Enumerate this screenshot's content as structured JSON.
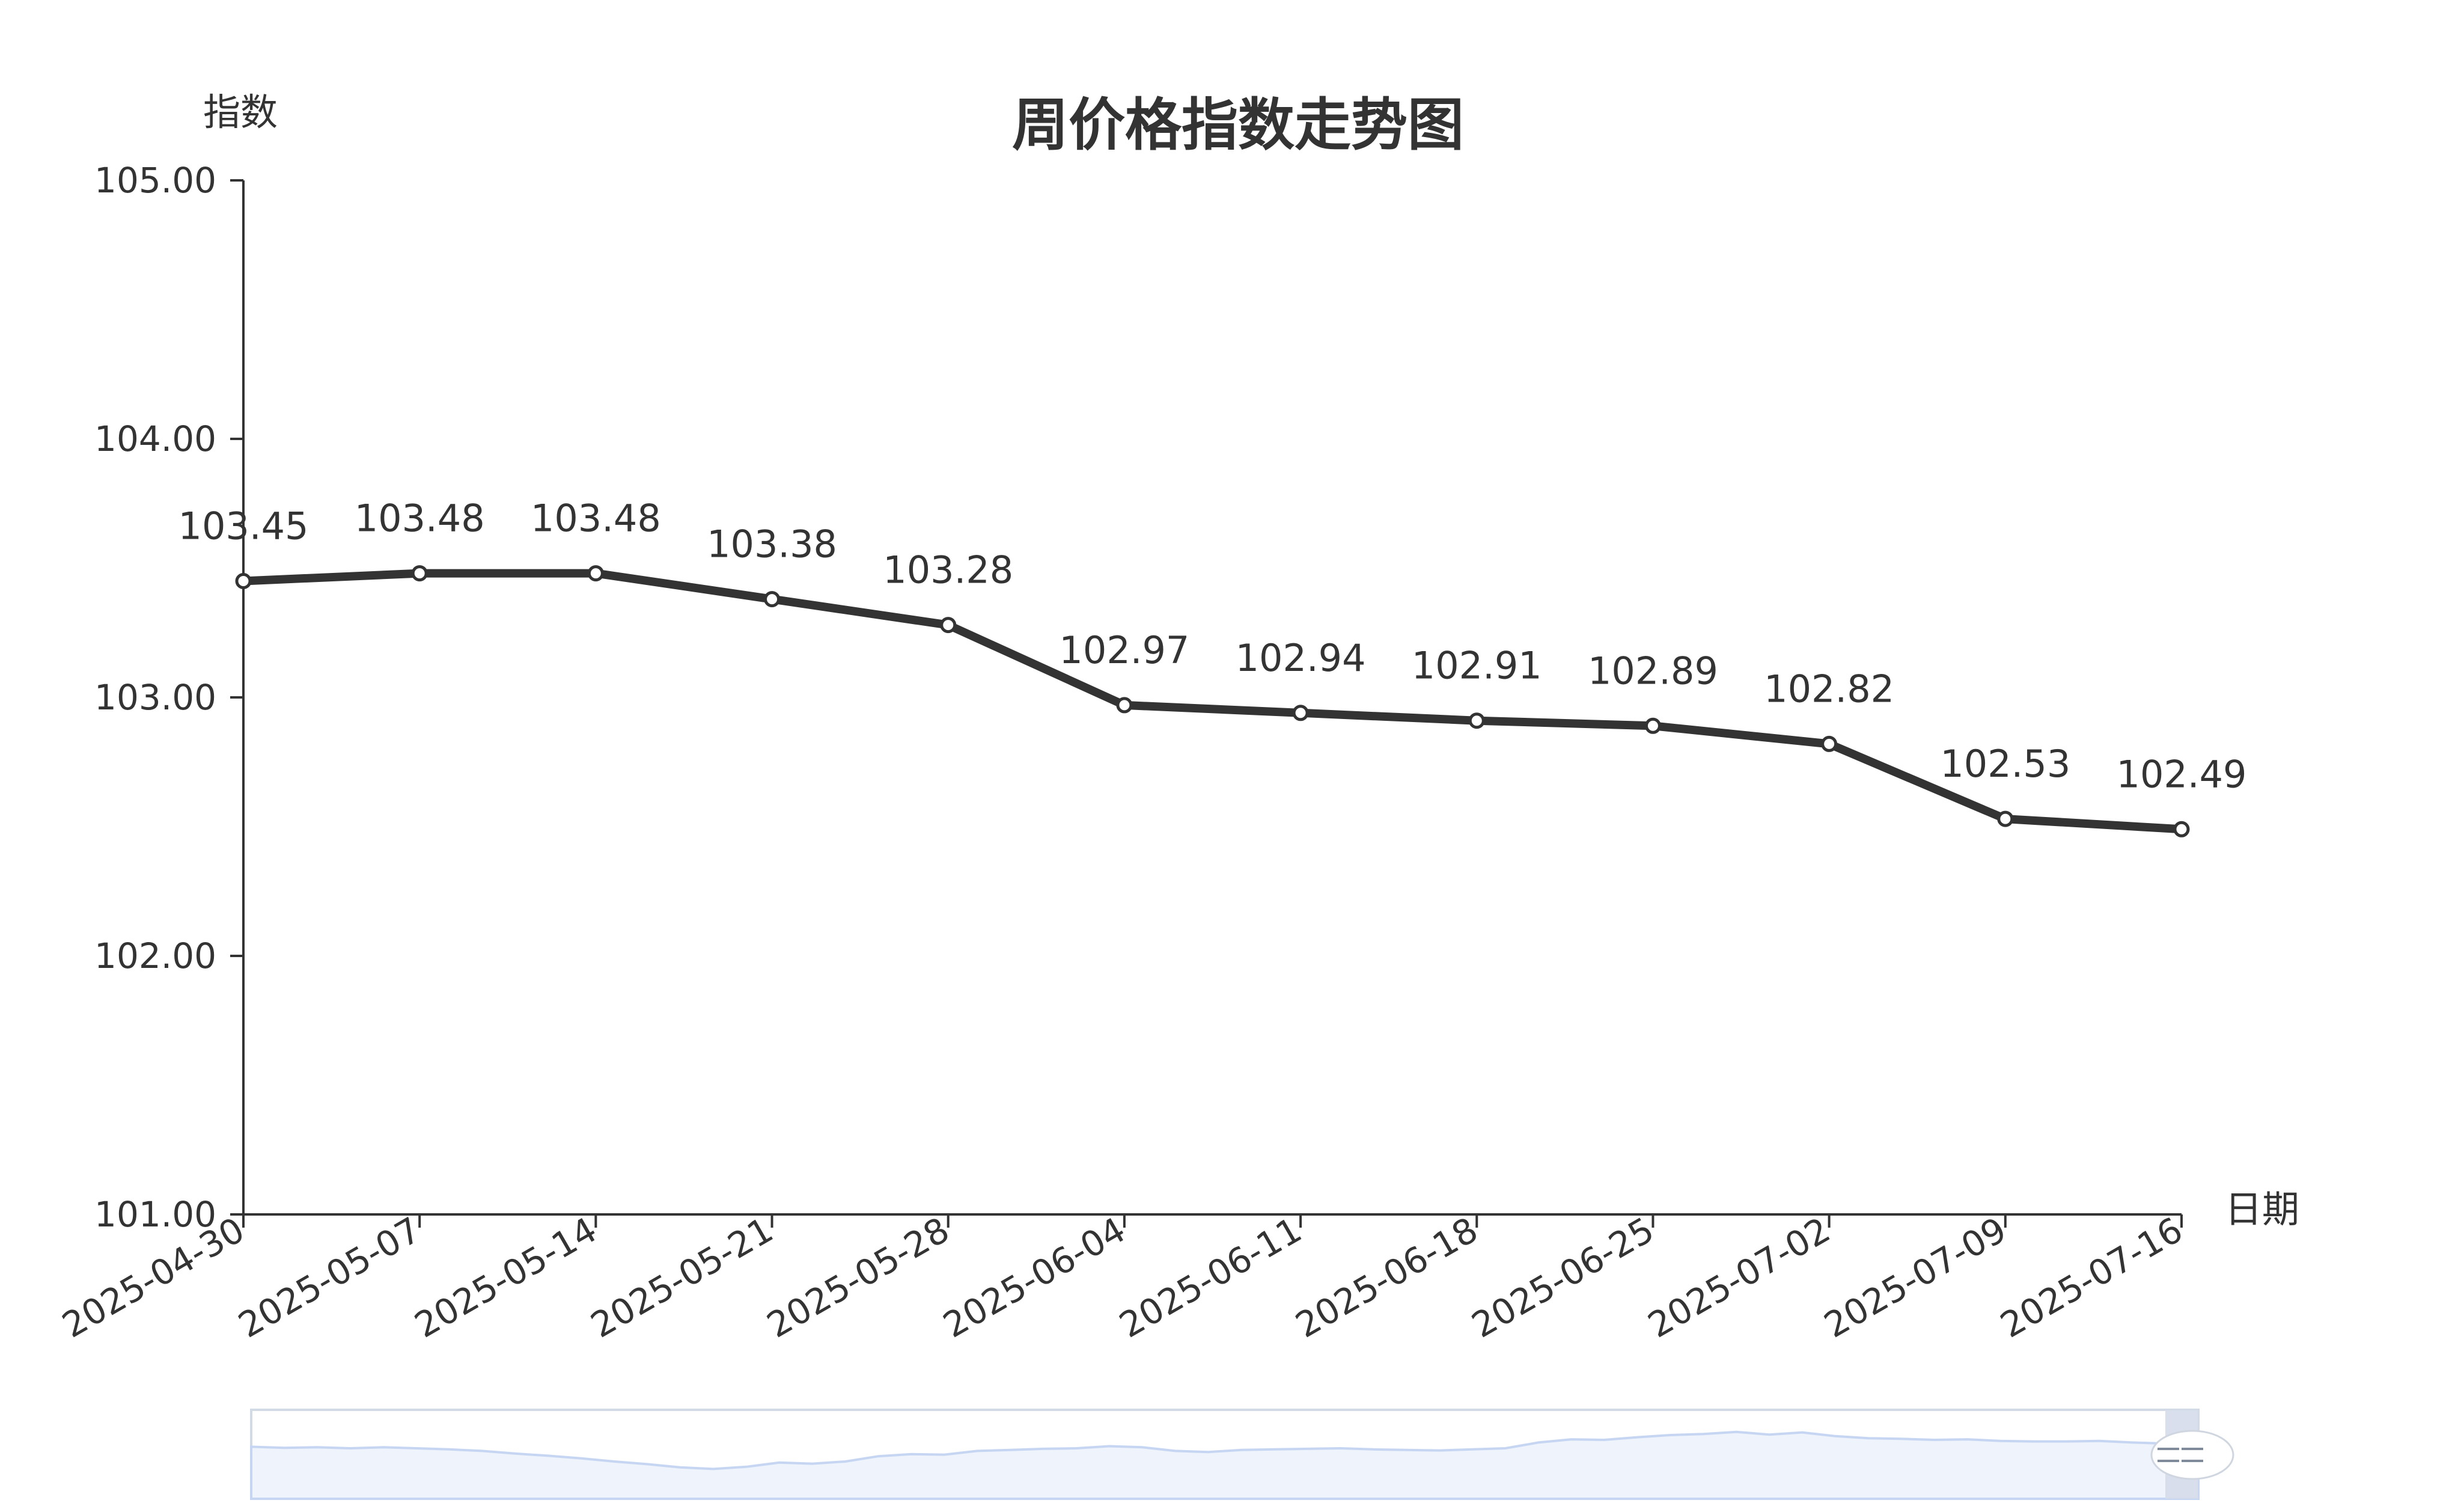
{
  "chart_data": {
    "type": "line",
    "title": "周价格指数走势图",
    "xlabel": "日期",
    "ylabel": "指数",
    "categories": [
      "2025-04-30",
      "2025-05-07",
      "2025-05-14",
      "2025-05-21",
      "2025-05-28",
      "2025-06-04",
      "2025-06-11",
      "2025-06-18",
      "2025-06-25",
      "2025-07-02",
      "2025-07-09",
      "2025-07-16"
    ],
    "series": [
      {
        "values": [
          103.45,
          103.48,
          103.48,
          103.38,
          103.28,
          102.97,
          102.94,
          102.91,
          102.89,
          102.82,
          102.53,
          102.49
        ],
        "labels": [
          "103.45",
          "103.48",
          "103.48",
          "103.38",
          "103.28",
          "102.97",
          "102.94",
          "102.91",
          "102.89",
          "102.82",
          "102.53",
          "102.49"
        ],
        "color": "#333333"
      }
    ],
    "ylim": [
      101.0,
      105.0
    ],
    "yticks": [
      101.0,
      102.0,
      103.0,
      104.0,
      105.0
    ],
    "ytick_labels": [
      "101.00",
      "102.00",
      "103.00",
      "104.00",
      "105.00"
    ],
    "grid": false,
    "legend": "none",
    "data_zoom": {
      "present": true,
      "range_percent": [
        0,
        100
      ],
      "fill_color": "#eef3fc",
      "line_color": "#c6d6f2",
      "handle_color": "#d5dcea"
    }
  }
}
